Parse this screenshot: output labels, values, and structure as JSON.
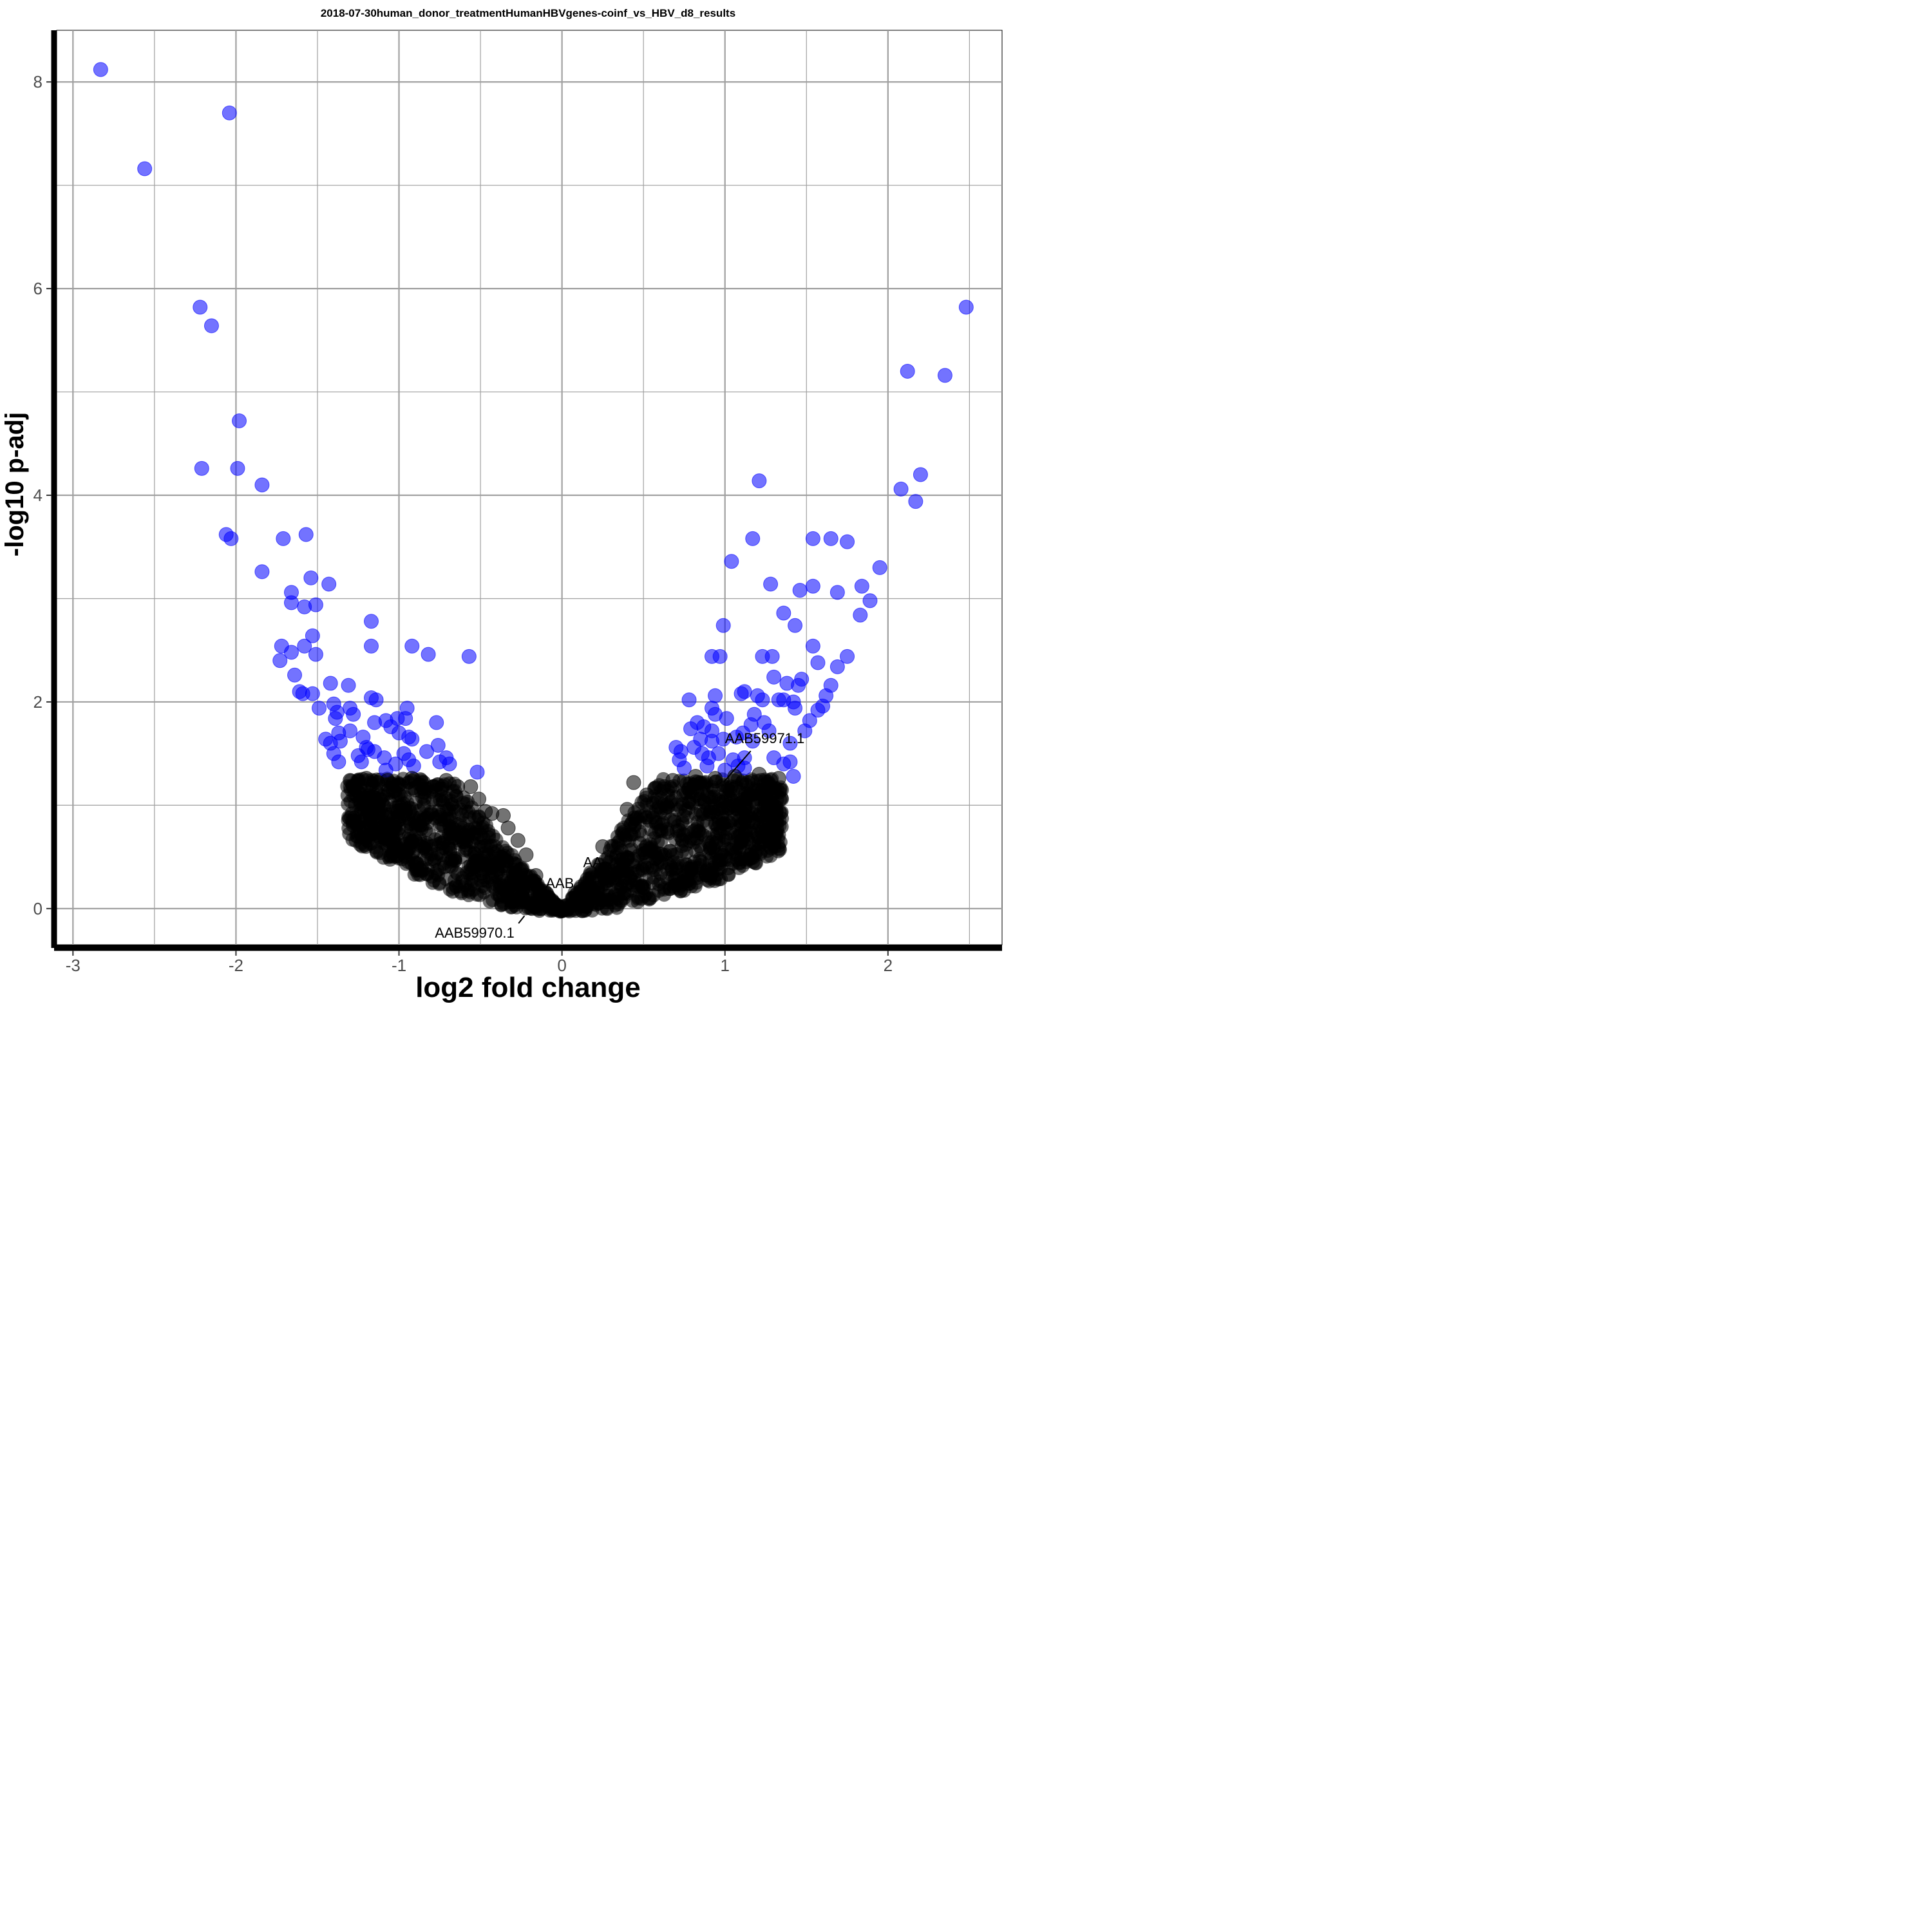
{
  "chart_data": {
    "type": "scatter",
    "title": "2018-07-30human_donor_treatmentHumanHBVgenes-coinf_vs_HBV_d8_results",
    "xlabel": "log2 fold change",
    "ylabel": "-log10 p-adj",
    "xlim": [
      -3.1,
      2.7
    ],
    "ylim": [
      -0.35,
      8.5
    ],
    "x_ticks": [
      -3,
      -2,
      -1,
      0,
      1,
      2
    ],
    "x_tick_labels": [
      "-3",
      "-2",
      "-1",
      "0",
      "1",
      "2"
    ],
    "y_ticks": [
      0,
      2,
      4,
      6,
      8
    ],
    "y_tick_labels": [
      "0",
      "2",
      "4",
      "6",
      "8"
    ],
    "grid": true,
    "colors": {
      "significant": "#0000ff",
      "not_significant": "#000000",
      "grid": "#a0a0a0"
    },
    "series": [
      {
        "color": "#0000ff",
        "points": [
          [
            -2.83,
            8.12
          ],
          [
            -2.04,
            7.7
          ],
          [
            -2.56,
            7.16
          ],
          [
            -2.22,
            5.82
          ],
          [
            -2.15,
            5.64
          ],
          [
            -1.98,
            4.72
          ],
          [
            -2.21,
            4.26
          ],
          [
            -1.99,
            4.26
          ],
          [
            -1.84,
            4.1
          ],
          [
            -2.06,
            3.62
          ],
          [
            -2.03,
            3.58
          ],
          [
            -1.71,
            3.58
          ],
          [
            -1.57,
            3.62
          ],
          [
            -1.84,
            3.26
          ],
          [
            -1.54,
            3.2
          ],
          [
            -1.43,
            3.14
          ],
          [
            -1.66,
            3.06
          ],
          [
            -1.66,
            2.96
          ],
          [
            -1.58,
            2.92
          ],
          [
            -1.51,
            2.94
          ],
          [
            -1.53,
            2.64
          ],
          [
            -1.72,
            2.54
          ],
          [
            -1.58,
            2.54
          ],
          [
            -1.66,
            2.48
          ],
          [
            -1.73,
            2.4
          ],
          [
            -1.51,
            2.46
          ],
          [
            -1.64,
            2.26
          ],
          [
            -1.42,
            2.18
          ],
          [
            -1.61,
            2.1
          ],
          [
            -1.53,
            2.08
          ],
          [
            -1.31,
            2.16
          ],
          [
            -1.59,
            2.08
          ],
          [
            -1.4,
            1.98
          ],
          [
            -1.49,
            1.94
          ],
          [
            -1.3,
            1.94
          ],
          [
            -1.38,
            1.9
          ],
          [
            -1.39,
            1.84
          ],
          [
            -1.28,
            1.88
          ],
          [
            -1.45,
            1.64
          ],
          [
            -1.37,
            1.7
          ],
          [
            -1.3,
            1.72
          ],
          [
            -1.36,
            1.62
          ],
          [
            -1.42,
            1.6
          ],
          [
            -1.4,
            1.5
          ],
          [
            -1.37,
            1.42
          ],
          [
            -1.17,
            2.78
          ],
          [
            -1.17,
            2.54
          ],
          [
            -0.92,
            2.54
          ],
          [
            -0.82,
            2.46
          ],
          [
            -0.57,
            2.44
          ],
          [
            -1.17,
            2.04
          ],
          [
            -1.14,
            2.02
          ],
          [
            -0.95,
            1.94
          ],
          [
            -1.01,
            1.84
          ],
          [
            -1.08,
            1.82
          ],
          [
            -0.96,
            1.84
          ],
          [
            -1.15,
            1.8
          ],
          [
            -0.94,
            1.66
          ],
          [
            -0.77,
            1.8
          ],
          [
            -1.22,
            1.66
          ],
          [
            -1.05,
            1.76
          ],
          [
            -1.0,
            1.7
          ],
          [
            -0.92,
            1.64
          ],
          [
            -0.76,
            1.58
          ],
          [
            -1.25,
            1.48
          ],
          [
            -1.09,
            1.46
          ],
          [
            -1.19,
            1.54
          ],
          [
            -0.97,
            1.5
          ],
          [
            -1.23,
            1.42
          ],
          [
            -0.94,
            1.44
          ],
          [
            -0.83,
            1.52
          ],
          [
            -0.71,
            1.46
          ],
          [
            -0.91,
            1.38
          ],
          [
            -1.02,
            1.4
          ],
          [
            -1.08,
            1.34
          ],
          [
            -0.75,
            1.42
          ],
          [
            -0.69,
            1.4
          ],
          [
            -0.52,
            1.32
          ],
          [
            -1.15,
            1.52
          ],
          [
            -1.2,
            1.56
          ],
          [
            1.21,
            4.14
          ],
          [
            1.04,
            3.36
          ],
          [
            1.17,
            3.58
          ],
          [
            1.28,
            3.14
          ],
          [
            0.99,
            2.74
          ],
          [
            0.92,
            2.44
          ],
          [
            0.97,
            2.44
          ],
          [
            1.23,
            2.44
          ],
          [
            1.29,
            2.44
          ],
          [
            1.3,
            2.24
          ],
          [
            0.78,
            2.02
          ],
          [
            0.94,
            2.06
          ],
          [
            1.12,
            2.1
          ],
          [
            1.1,
            2.08
          ],
          [
            1.2,
            2.06
          ],
          [
            1.23,
            2.02
          ],
          [
            0.92,
            1.94
          ],
          [
            0.94,
            1.88
          ],
          [
            1.01,
            1.84
          ],
          [
            0.83,
            1.8
          ],
          [
            0.87,
            1.76
          ],
          [
            0.79,
            1.74
          ],
          [
            0.92,
            1.72
          ],
          [
            1.16,
            1.78
          ],
          [
            1.18,
            1.88
          ],
          [
            1.24,
            1.8
          ],
          [
            1.27,
            1.72
          ],
          [
            0.85,
            1.64
          ],
          [
            0.92,
            1.62
          ],
          [
            0.99,
            1.64
          ],
          [
            1.07,
            1.66
          ],
          [
            1.11,
            1.7
          ],
          [
            1.17,
            1.62
          ],
          [
            0.7,
            1.56
          ],
          [
            0.73,
            1.52
          ],
          [
            0.81,
            1.56
          ],
          [
            0.86,
            1.5
          ],
          [
            0.9,
            1.46
          ],
          [
            0.96,
            1.5
          ],
          [
            1.05,
            1.44
          ],
          [
            1.12,
            1.46
          ],
          [
            0.72,
            1.44
          ],
          [
            0.75,
            1.36
          ],
          [
            0.89,
            1.38
          ],
          [
            1.0,
            1.34
          ],
          [
            1.08,
            1.38
          ],
          [
            1.12,
            1.36
          ],
          [
            1.3,
            1.46
          ],
          [
            1.36,
            1.4
          ],
          [
            1.4,
            1.42
          ],
          [
            1.42,
            1.28
          ],
          [
            1.49,
            1.72
          ],
          [
            1.52,
            1.82
          ],
          [
            1.57,
            1.92
          ],
          [
            1.6,
            1.96
          ],
          [
            1.62,
            2.06
          ],
          [
            1.65,
            2.16
          ],
          [
            1.57,
            2.38
          ],
          [
            1.54,
            2.54
          ],
          [
            1.47,
            2.22
          ],
          [
            1.45,
            2.16
          ],
          [
            1.38,
            2.18
          ],
          [
            1.36,
            2.02
          ],
          [
            1.42,
            2.0
          ],
          [
            1.33,
            2.02
          ],
          [
            1.43,
            1.94
          ],
          [
            1.4,
            1.6
          ],
          [
            1.46,
            3.08
          ],
          [
            1.54,
            3.12
          ],
          [
            1.36,
            2.86
          ],
          [
            1.43,
            2.74
          ],
          [
            1.54,
            3.58
          ],
          [
            1.65,
            3.58
          ],
          [
            1.75,
            3.55
          ],
          [
            1.69,
            3.06
          ],
          [
            1.69,
            2.34
          ],
          [
            1.75,
            2.44
          ],
          [
            1.83,
            2.84
          ],
          [
            1.84,
            3.12
          ],
          [
            1.89,
            2.98
          ],
          [
            1.95,
            3.3
          ],
          [
            2.12,
            5.2
          ],
          [
            2.35,
            5.16
          ],
          [
            2.48,
            5.82
          ],
          [
            2.2,
            4.2
          ],
          [
            2.08,
            4.06
          ],
          [
            2.17,
            3.94
          ]
        ]
      },
      {
        "color": "#000000",
        "points": [
          [
            -1.3,
            1.24
          ],
          [
            -1.26,
            1.2
          ],
          [
            -1.2,
            1.26
          ],
          [
            -1.13,
            1.22
          ],
          [
            -1.07,
            1.24
          ],
          [
            -1.0,
            1.2
          ],
          [
            -0.92,
            1.26
          ],
          [
            -0.85,
            1.22
          ],
          [
            -0.79,
            1.18
          ],
          [
            -0.71,
            1.24
          ],
          [
            -0.64,
            1.18
          ],
          [
            -0.56,
            1.18
          ],
          [
            -0.51,
            1.06
          ],
          [
            -0.47,
            0.94
          ],
          [
            -0.43,
            0.92
          ],
          [
            -0.36,
            0.9
          ],
          [
            -0.33,
            0.78
          ],
          [
            -0.27,
            0.66
          ],
          [
            -0.22,
            0.52
          ],
          [
            -0.16,
            0.32
          ],
          [
            0.44,
            1.22
          ],
          [
            0.52,
            1.1
          ],
          [
            0.4,
            0.96
          ],
          [
            0.25,
            0.6
          ],
          [
            0.68,
            1.24
          ],
          [
            0.82,
            1.28
          ],
          [
            0.94,
            1.26
          ],
          [
            1.06,
            1.28
          ],
          [
            1.14,
            1.22
          ],
          [
            1.21,
            1.3
          ],
          [
            1.28,
            1.24
          ],
          [
            1.33,
            1.26
          ]
        ]
      }
    ],
    "cloud": {
      "color": "#000000",
      "left_slope": 1.6,
      "left_limit": -1.32,
      "right_slope": 1.95,
      "right_limit": 1.35
    },
    "annotations": [
      {
        "text": "AAB59971.1",
        "x": 1.0,
        "y": 1.6,
        "point_x": 0.99,
        "point_y": 1.22
      },
      {
        "text": "AAB59970.1",
        "x": -0.78,
        "y": -0.28,
        "point_x": -0.23,
        "point_y": -0.07
      },
      {
        "text": "AA",
        "x": 0.13,
        "y": 0.4
      },
      {
        "text": "AAB",
        "x": -0.1,
        "y": 0.2
      }
    ]
  }
}
